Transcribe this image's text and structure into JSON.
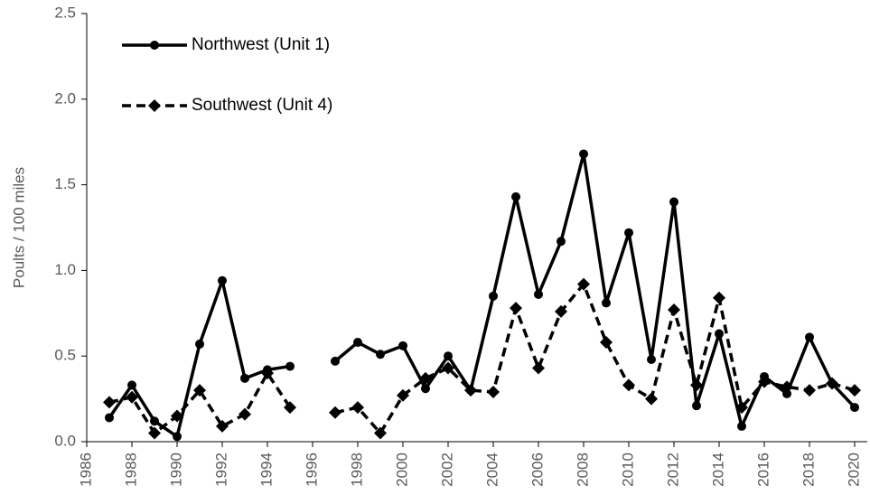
{
  "chart_data": {
    "type": "line",
    "y_label": "Poults / 100 miles",
    "x": [
      1987,
      1988,
      1989,
      1990,
      1991,
      1992,
      1993,
      1994,
      1995,
      1996,
      1997,
      1998,
      1999,
      2000,
      2001,
      2002,
      2003,
      2004,
      2005,
      2006,
      2007,
      2008,
      2009,
      2010,
      2011,
      2012,
      2013,
      2014,
      2015,
      2016,
      2017,
      2018,
      2019,
      2020
    ],
    "series": [
      {
        "name": "Northwest (Unit 1)",
        "color": "#000000",
        "line_style": "solid",
        "marker": "circle",
        "values": [
          0.14,
          0.33,
          0.12,
          0.03,
          0.57,
          0.94,
          0.37,
          0.42,
          0.44,
          null,
          0.47,
          0.58,
          0.51,
          0.56,
          0.31,
          0.5,
          0.3,
          0.85,
          1.43,
          0.86,
          1.17,
          1.68,
          0.81,
          1.22,
          0.48,
          1.4,
          0.21,
          0.63,
          0.09,
          0.38,
          0.28,
          0.61,
          0.34,
          0.2
        ]
      },
      {
        "name": "Southwest (Unit 4)",
        "color": "#000000",
        "line_style": "dashed",
        "marker": "diamond",
        "values": [
          0.23,
          0.26,
          0.05,
          0.15,
          0.3,
          0.09,
          0.16,
          0.4,
          0.2,
          null,
          0.17,
          0.2,
          0.05,
          0.27,
          0.37,
          0.43,
          0.3,
          0.29,
          0.78,
          0.43,
          0.76,
          0.92,
          0.58,
          0.33,
          0.25,
          0.77,
          0.33,
          0.84,
          0.2,
          0.35,
          0.32,
          0.3,
          0.34,
          0.3
        ]
      }
    ],
    "xlim": [
      1986,
      2020
    ],
    "xticks": [
      1986,
      1988,
      1990,
      1992,
      1994,
      1996,
      1998,
      2000,
      2002,
      2004,
      2006,
      2008,
      2010,
      2012,
      2014,
      2016,
      2018,
      2020
    ],
    "ylim": [
      0,
      2.5
    ],
    "yticks": [
      {
        "value": 0,
        "label": "0.0"
      },
      0.5,
      {
        "value": 1,
        "label": "1.0"
      },
      1.5,
      {
        "value": 2,
        "label": "2.0"
      },
      2.5
    ],
    "grid": false,
    "legend": "upper left"
  }
}
